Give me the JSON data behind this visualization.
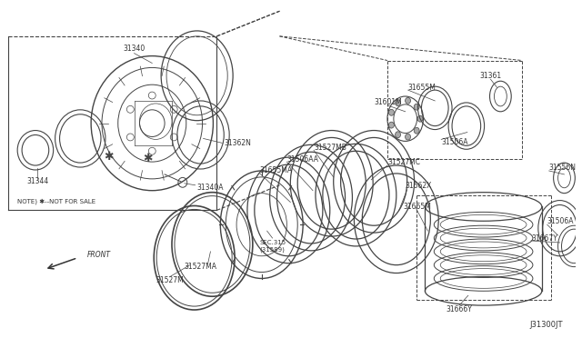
{
  "bg_color": "#ffffff",
  "line_color": "#444444",
  "text_color": "#333333",
  "diagram_id": "J31300JT",
  "note_text": "NOTE) ✱--NOT FOR SALE",
  "front_text": "FRONT"
}
